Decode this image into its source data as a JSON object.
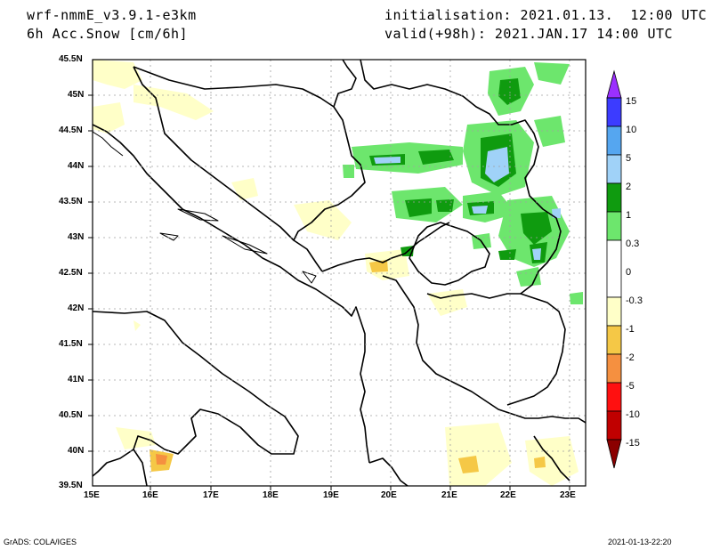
{
  "header": {
    "model": "wrf-nmmE_v3.9.1-e3km",
    "field": "6h Acc.Snow [cm/6h]",
    "init": "initialisation: 2021.01.13.  12:00 UTC",
    "valid": "valid(+98h): 2021.JAN.17 14:00 UTC"
  },
  "axes": {
    "lat_labels": [
      "45.5N",
      "45N",
      "44.5N",
      "44N",
      "43.5N",
      "43N",
      "42.5N",
      "42N",
      "41.5N",
      "41N",
      "40.5N",
      "40N",
      "39.5N"
    ],
    "lon_labels": [
      "15E",
      "16E",
      "17E",
      "18E",
      "19E",
      "20E",
      "21E",
      "22E",
      "23E"
    ]
  },
  "colorbar": {
    "labels": [
      "15",
      "10",
      "5",
      "2",
      "1",
      "0.3",
      "0",
      "-0.3",
      "-1",
      "-2",
      "-5",
      "-10",
      "-15"
    ],
    "colors": [
      "#9b30ff",
      "#3c3cff",
      "#55a6f0",
      "#a0d2f8",
      "#0f9b0f",
      "#6de66d",
      "#ffffff",
      "#ffffc8",
      "#f5c846",
      "#f59040",
      "#ff1010",
      "#c00000",
      "#8b0000"
    ]
  },
  "footer": {
    "left": "GrADS: COLA/IGES",
    "right": "2021-01-13-22:20"
  }
}
